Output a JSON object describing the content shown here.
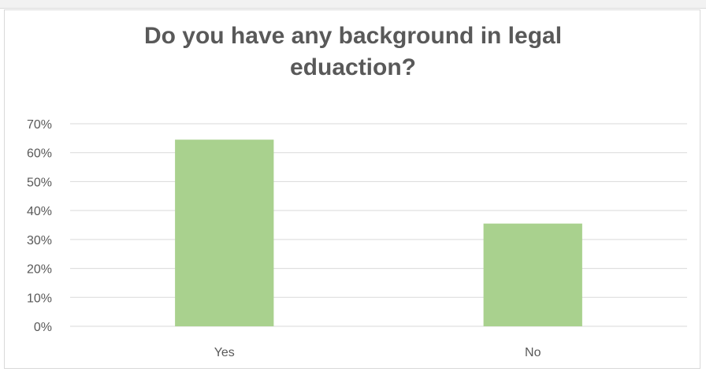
{
  "chart_data": {
    "type": "bar",
    "title": "Do you have any background in legal eduaction?",
    "title_lines": [
      "Do you have any background in legal",
      "eduaction?"
    ],
    "categories": [
      "Yes",
      "No"
    ],
    "values": [
      0.645,
      0.355
    ],
    "ylim": [
      0,
      0.7
    ],
    "yticks": [
      "0%",
      "10%",
      "20%",
      "30%",
      "40%",
      "50%",
      "60%",
      "70%"
    ],
    "xlabel": "",
    "ylabel": "",
    "grid": true,
    "legend": "none",
    "colors": {
      "bar": "#a9d18e",
      "grid": "#d9d9d9",
      "title": "#595959",
      "text": "#595959"
    }
  }
}
